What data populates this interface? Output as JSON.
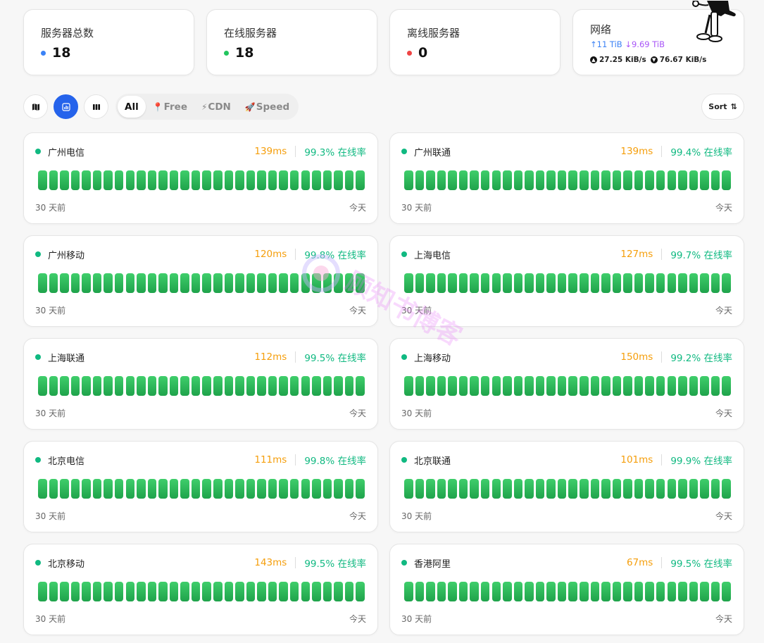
{
  "stats": {
    "total": {
      "label": "服务器总数",
      "value": "18",
      "color": "#3b82f6"
    },
    "online": {
      "label": "在线服务器",
      "value": "18",
      "color": "#22c55e"
    },
    "offline": {
      "label": "离线服务器",
      "value": "0",
      "color": "#ef4444"
    },
    "network": {
      "label": "网络",
      "upload_total": "↑11 TiB",
      "download_total": "↓9.69 TiB",
      "upload_speed": "27.25 KiB/s",
      "download_speed": "76.67 KiB/s",
      "upload_color": "#3b82f6",
      "download_color": "#a855f7"
    }
  },
  "toolbar": {
    "view_buttons": [
      "map-icon",
      "chart-icon",
      "columns-icon"
    ],
    "tabs": [
      {
        "label": "All",
        "icon": ""
      },
      {
        "label": "Free",
        "icon": "📍"
      },
      {
        "label": "CDN",
        "icon": "⚡"
      },
      {
        "label": "Speed",
        "icon": "🚀"
      }
    ],
    "sort_label": "Sort",
    "sort_icon": "⇅"
  },
  "monitors": [
    {
      "name": "广州电信",
      "latency": "139ms",
      "uptime": "99.3% 在线率"
    },
    {
      "name": "广州联通",
      "latency": "139ms",
      "uptime": "99.4% 在线率"
    },
    {
      "name": "广州移动",
      "latency": "120ms",
      "uptime": "99.8% 在线率"
    },
    {
      "name": "上海电信",
      "latency": "127ms",
      "uptime": "99.7% 在线率"
    },
    {
      "name": "上海联通",
      "latency": "112ms",
      "uptime": "99.5% 在线率"
    },
    {
      "name": "上海移动",
      "latency": "150ms",
      "uptime": "99.2% 在线率"
    },
    {
      "name": "北京电信",
      "latency": "111ms",
      "uptime": "99.8% 在线率"
    },
    {
      "name": "北京联通",
      "latency": "101ms",
      "uptime": "99.9% 在线率"
    },
    {
      "name": "北京移动",
      "latency": "143ms",
      "uptime": "99.5% 在线率"
    },
    {
      "name": "香港阿里",
      "latency": "67ms",
      "uptime": "99.5% 在线率"
    }
  ],
  "history": {
    "days": 30,
    "start_label": "30 天前",
    "end_label": "今天"
  },
  "colors": {
    "online": "#10b981",
    "latency": "#f59e0b",
    "bar": "#22c55e",
    "accent": "#2563eb"
  },
  "watermark": {
    "text": "顾知书博客"
  }
}
